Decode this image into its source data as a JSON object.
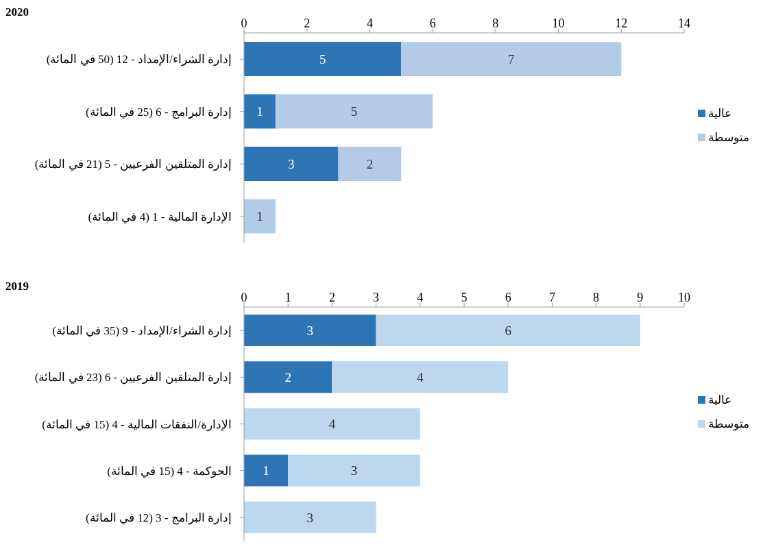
{
  "chart_data": [
    {
      "type": "bar",
      "title": "2020",
      "orientation": "horizontal",
      "stacked": true,
      "categories": [
        "إدارة الشراء/الإمداد - 12 (50 في المائة)",
        "إدارة البرامج - 6 (25 في المائة)",
        "إدارة المتلقين الفرعيين - 5 (21 في المائة)",
        "الإدارة المالية - 1 (4 في المائة)"
      ],
      "series": [
        {
          "name": "عالية",
          "color": "#2e75b6",
          "values": [
            5,
            1,
            3,
            null
          ]
        },
        {
          "name": "متوسطة",
          "color": "#b4cbe8",
          "values": [
            7,
            5,
            2,
            1
          ]
        }
      ],
      "xlim": [
        0,
        14
      ],
      "xticks": [
        0,
        2,
        4,
        6,
        8,
        10,
        12,
        14
      ],
      "data_labels": true,
      "legend": "right",
      "grid": false
    },
    {
      "type": "bar",
      "title": "2019",
      "orientation": "horizontal",
      "stacked": true,
      "categories": [
        "إدارة الشراء/الإمداد - 9 (35 في المائة)",
        "إدارة المتلقين الفرعيين - 6 (23 في المائة)",
        "الإدارة/النفقات المالية - 4 (15 في المائة)",
        "الحوكمة - 4 (15 في المائة)",
        "إدارة البرامج - 3 (12 في المائة)"
      ],
      "series": [
        {
          "name": "عالية",
          "color": "#2e75b6",
          "values": [
            3,
            2,
            null,
            1,
            null
          ]
        },
        {
          "name": "متوسطة",
          "color": "#bdd7ee",
          "values": [
            6,
            4,
            4,
            3,
            3
          ]
        }
      ],
      "xlim": [
        0,
        10
      ],
      "xticks": [
        0,
        1,
        2,
        3,
        4,
        5,
        6,
        7,
        8,
        9,
        10
      ],
      "data_labels": true,
      "legend": "right",
      "grid": false
    }
  ]
}
